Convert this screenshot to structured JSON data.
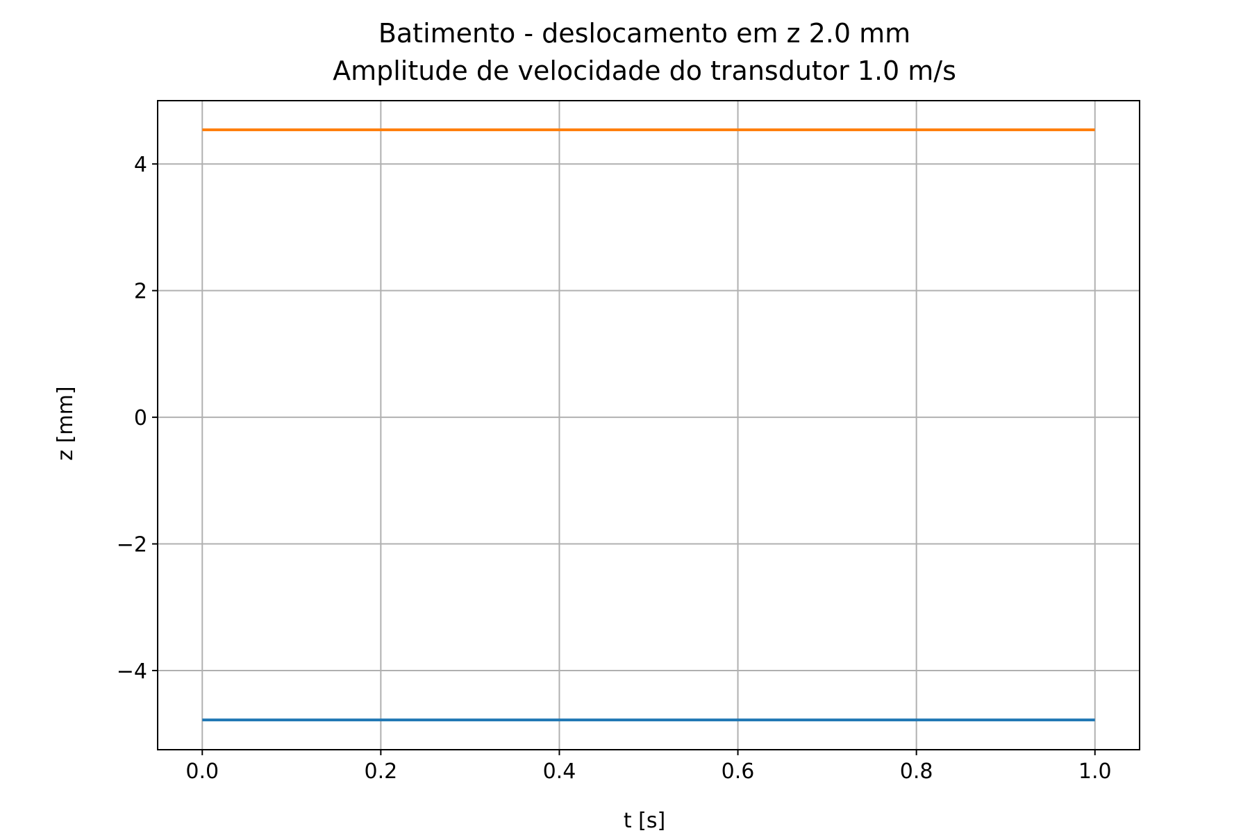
{
  "chart_data": {
    "type": "line",
    "title_line1": "Batimento - deslocamento em z 2.0 mm",
    "title_line2": "Amplitude de velocidade do transdutor 1.0 m/s",
    "xlabel": "t [s]",
    "ylabel": "z [mm]",
    "xlim": [
      -0.05,
      1.05
    ],
    "ylim": [
      -5.25,
      5.0
    ],
    "grid": true,
    "xticks": [
      0.0,
      0.2,
      0.4,
      0.6,
      0.8,
      1.0
    ],
    "xtick_labels": [
      "0.0",
      "0.2",
      "0.4",
      "0.6",
      "0.8",
      "1.0"
    ],
    "yticks": [
      -4,
      -2,
      0,
      2,
      4
    ],
    "ytick_labels": [
      "−4",
      "−2",
      "0",
      "2",
      "4"
    ],
    "series": [
      {
        "color": "#1f77b4",
        "x": [
          0.0,
          0.25,
          0.5,
          0.75,
          1.0
        ],
        "y": [
          -4.78,
          -4.78,
          -4.78,
          -4.78,
          -4.78
        ]
      },
      {
        "color": "#ff7f0e",
        "x": [
          0.0,
          0.25,
          0.5,
          0.75,
          1.0
        ],
        "y": [
          4.54,
          4.54,
          4.54,
          4.54,
          4.54
        ]
      }
    ]
  }
}
